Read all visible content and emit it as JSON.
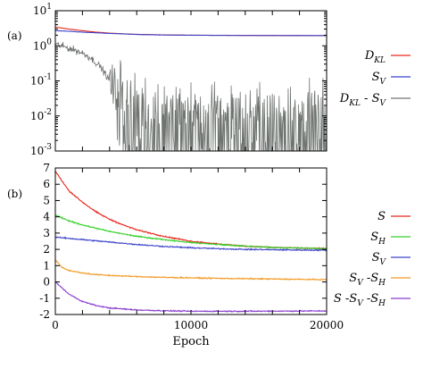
{
  "chart_data": [
    {
      "panel_label": "(a)",
      "type": "line",
      "y_scale": "log",
      "xlim": [
        0,
        20000
      ],
      "ylim": [
        0.001,
        10
      ],
      "yticks": [
        0.001,
        0.01,
        0.1,
        1,
        10
      ],
      "ytick_labels": [
        {
          "base": "10",
          "exp": "-3"
        },
        {
          "base": "10",
          "exp": "-2"
        },
        {
          "base": "10",
          "exp": "-1"
        },
        {
          "base": "10",
          "exp": "0"
        },
        {
          "base": "10",
          "exp": "1"
        }
      ],
      "legend_position": "right",
      "series": [
        {
          "legend": {
            "main": "D",
            "sub": "KL",
            "sub_mode": "sub"
          },
          "color": "#e8281e",
          "points": [
            [
              0,
              3.4
            ],
            [
              500,
              3.2
            ],
            [
              1000,
              3.0
            ],
            [
              2000,
              2.7
            ],
            [
              3000,
              2.45
            ],
            [
              4000,
              2.3
            ],
            [
              5000,
              2.2
            ],
            [
              6000,
              2.12
            ],
            [
              8000,
              2.05
            ],
            [
              10000,
              2.0
            ],
            [
              14000,
              1.98
            ],
            [
              20000,
              1.95
            ]
          ]
        },
        {
          "legend": {
            "main": "S",
            "sub": "V",
            "sub_mode": "sub"
          },
          "color": "#3d44c9",
          "points": [
            [
              0,
              2.7
            ],
            [
              1000,
              2.6
            ],
            [
              2000,
              2.45
            ],
            [
              3000,
              2.35
            ],
            [
              4000,
              2.25
            ],
            [
              5000,
              2.18
            ],
            [
              6000,
              2.1
            ],
            [
              8000,
              2.03
            ],
            [
              10000,
              2.0
            ],
            [
              14000,
              1.97
            ],
            [
              20000,
              1.95
            ]
          ]
        },
        {
          "legend": {
            "main": "D",
            "sub": "KL",
            "sub_mode": "sub",
            "suffix": " - S",
            "sub2": "V"
          },
          "color": "#6f7470",
          "points": [
            [
              0,
              1.1
            ],
            [
              1000,
              0.85
            ],
            [
              2000,
              0.62
            ],
            [
              3000,
              0.33
            ],
            [
              3800,
              0.13
            ],
            [
              4400,
              0.04
            ],
            [
              5000,
              0.012
            ],
            [
              6000,
              0.006
            ],
            [
              8000,
              0.004
            ],
            [
              10000,
              0.004
            ],
            [
              14000,
              0.004
            ],
            [
              20000,
              0.004
            ]
          ],
          "noise": true
        }
      ]
    },
    {
      "panel_label": "(b)",
      "type": "line",
      "xlim": [
        0,
        20000
      ],
      "ylim": [
        -2,
        7
      ],
      "yticks": [
        -2,
        -1,
        0,
        1,
        2,
        3,
        4,
        5,
        6,
        7
      ],
      "xticks": [
        0,
        10000,
        20000
      ],
      "xlabel": "Epoch",
      "legend_position": "right",
      "series": [
        {
          "legend": {
            "main": "S"
          },
          "color": "#e8281e",
          "points": [
            [
              0,
              6.8
            ],
            [
              1000,
              5.6
            ],
            [
              2000,
              4.9
            ],
            [
              3000,
              4.3
            ],
            [
              4000,
              3.85
            ],
            [
              5000,
              3.5
            ],
            [
              6000,
              3.2
            ],
            [
              8000,
              2.8
            ],
            [
              10000,
              2.5
            ],
            [
              12000,
              2.33
            ],
            [
              14000,
              2.2
            ],
            [
              16000,
              2.12
            ],
            [
              18000,
              2.08
            ],
            [
              20000,
              2.05
            ]
          ]
        },
        {
          "legend": {
            "main": "S",
            "sub": "H",
            "sub_mode": "sub"
          },
          "color": "#35d12a",
          "points": [
            [
              0,
              4.1
            ],
            [
              1000,
              3.75
            ],
            [
              2000,
              3.5
            ],
            [
              3000,
              3.3
            ],
            [
              4000,
              3.1
            ],
            [
              5000,
              2.95
            ],
            [
              6000,
              2.8
            ],
            [
              8000,
              2.6
            ],
            [
              10000,
              2.42
            ],
            [
              12000,
              2.3
            ],
            [
              14000,
              2.2
            ],
            [
              16000,
              2.12
            ],
            [
              18000,
              2.08
            ],
            [
              20000,
              2.05
            ]
          ]
        },
        {
          "legend": {
            "main": "S",
            "sub": "V",
            "sub_mode": "sub"
          },
          "color": "#3d44c9",
          "points": [
            [
              0,
              2.75
            ],
            [
              2000,
              2.6
            ],
            [
              4000,
              2.45
            ],
            [
              6000,
              2.3
            ],
            [
              8000,
              2.18
            ],
            [
              10000,
              2.1
            ],
            [
              12000,
              2.04
            ],
            [
              14000,
              2.0
            ],
            [
              16000,
              1.98
            ],
            [
              18000,
              1.96
            ],
            [
              20000,
              1.95
            ]
          ]
        },
        {
          "legend": {
            "main": "S",
            "sub": "V",
            "sub_mode": "sub",
            "suffix": " -S",
            "sub2": "H"
          },
          "color": "#f29b27",
          "points": [
            [
              0,
              1.35
            ],
            [
              500,
              0.9
            ],
            [
              1000,
              0.7
            ],
            [
              2000,
              0.55
            ],
            [
              3000,
              0.45
            ],
            [
              4000,
              0.4
            ],
            [
              6000,
              0.33
            ],
            [
              8000,
              0.28
            ],
            [
              10000,
              0.25
            ],
            [
              12000,
              0.22
            ],
            [
              14000,
              0.2
            ],
            [
              16000,
              0.18
            ],
            [
              18000,
              0.16
            ],
            [
              20000,
              0.14
            ]
          ]
        },
        {
          "legend": {
            "main": "S",
            "suffix": " -S",
            "sub2": "V",
            "suffix2": " -S",
            "sub3": "H"
          },
          "color": "#8b3fcf",
          "points": [
            [
              0,
              0.0
            ],
            [
              1000,
              -0.75
            ],
            [
              2000,
              -1.2
            ],
            [
              3000,
              -1.45
            ],
            [
              4000,
              -1.6
            ],
            [
              6000,
              -1.72
            ],
            [
              8000,
              -1.77
            ],
            [
              10000,
              -1.8
            ],
            [
              14000,
              -1.8
            ],
            [
              20000,
              -1.78
            ]
          ]
        }
      ]
    }
  ]
}
